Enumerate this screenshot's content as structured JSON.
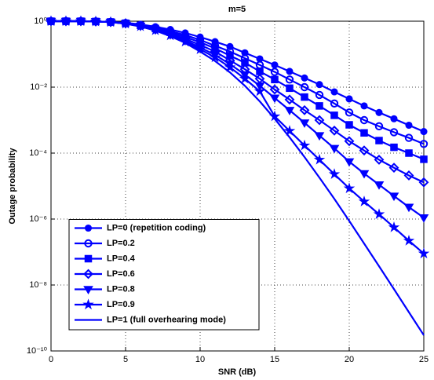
{
  "chart_data": {
    "type": "line",
    "title": "m=5",
    "xlabel": "SNR (dB)",
    "ylabel": "Outage probability",
    "x": [
      0,
      1,
      2,
      3,
      4,
      5,
      6,
      7,
      8,
      9,
      10,
      11,
      12,
      13,
      14,
      15,
      16,
      17,
      18,
      19,
      20,
      21,
      22,
      23,
      24,
      25
    ],
    "xlim": [
      0,
      25
    ],
    "xticks": [
      0,
      5,
      10,
      15,
      20,
      25
    ],
    "ylim": [
      1e-10,
      1
    ],
    "ylog": true,
    "yticks": [
      {
        "value": 1,
        "label": "10⁰"
      },
      {
        "value": 0.01,
        "label": "10⁻²"
      },
      {
        "value": 0.0001,
        "label": "10⁻⁴"
      },
      {
        "value": 1e-06,
        "label": "10⁻⁶"
      },
      {
        "value": 1e-08,
        "label": "10⁻⁸"
      },
      {
        "value": 1e-10,
        "label": "10⁻¹⁰"
      }
    ],
    "grid": true,
    "legend": "lower left",
    "series": [
      {
        "name": "LP=0 (repetition coding)",
        "color": "#0000ff",
        "marker": "circle-filled",
        "values": [
          1,
          1,
          1,
          0.98,
          0.95,
          0.9,
          0.8,
          0.68,
          0.56,
          0.44,
          0.33,
          0.24,
          0.17,
          0.11,
          0.072,
          0.047,
          0.03,
          0.019,
          0.012,
          0.0072,
          0.0044,
          0.0027,
          0.0017,
          0.0011,
          0.0007,
          0.00045
        ]
      },
      {
        "name": "LP=0.2",
        "color": "#0000ff",
        "marker": "circle",
        "values": [
          1,
          1,
          1,
          0.98,
          0.95,
          0.88,
          0.77,
          0.63,
          0.5,
          0.38,
          0.27,
          0.18,
          0.12,
          0.075,
          0.047,
          0.029,
          0.017,
          0.01,
          0.0058,
          0.0032,
          0.0017,
          0.001,
          0.00065,
          0.00043,
          0.00029,
          0.00019
        ]
      },
      {
        "name": "LP=0.4",
        "color": "#0000ff",
        "marker": "square",
        "values": [
          1,
          1,
          1,
          0.98,
          0.95,
          0.87,
          0.75,
          0.6,
          0.46,
          0.33,
          0.23,
          0.15,
          0.09,
          0.055,
          0.03,
          0.017,
          0.0093,
          0.005,
          0.0027,
          0.0014,
          0.00072,
          0.00041,
          0.00024,
          0.00015,
          0.0001,
          6.5e-05
        ]
      },
      {
        "name": "LP=0.6",
        "color": "#0000ff",
        "marker": "diamond",
        "values": [
          1,
          1,
          1,
          0.98,
          0.94,
          0.86,
          0.73,
          0.57,
          0.42,
          0.29,
          0.19,
          0.12,
          0.065,
          0.035,
          0.018,
          0.0085,
          0.0042,
          0.002,
          0.001,
          0.00048,
          0.00023,
          0.00012,
          6.3e-05,
          3.6e-05,
          2.1e-05,
          1.3e-05
        ]
      },
      {
        "name": "LP=0.8",
        "color": "#0000ff",
        "marker": "triangle-down",
        "values": [
          1,
          1,
          1,
          0.98,
          0.94,
          0.85,
          0.71,
          0.55,
          0.39,
          0.26,
          0.16,
          0.095,
          0.05,
          0.024,
          0.011,
          0.0047,
          0.002,
          0.00083,
          0.00034,
          0.00014,
          5.5e-05,
          2.4e-05,
          1.1e-05,
          5e-06,
          2.3e-06,
          1.1e-06
        ]
      },
      {
        "name": "LP=0.9",
        "color": "#0000ff",
        "marker": "star",
        "values": [
          1,
          1,
          1,
          0.98,
          0.94,
          0.84,
          0.7,
          0.53,
          0.37,
          0.24,
          0.14,
          0.08,
          0.04,
          0.018,
          0.0075,
          0.0013,
          0.00047,
          0.00017,
          6.3e-05,
          2.3e-05,
          8.5e-06,
          3.4e-06,
          1.4e-06,
          5.6e-07,
          2.2e-07,
          9e-08
        ]
      },
      {
        "name": "LP=1 (full overhearing mode)",
        "color": "#0000ff",
        "marker": "none",
        "values": [
          1,
          1,
          1,
          0.98,
          0.94,
          0.84,
          0.69,
          0.52,
          0.35,
          0.22,
          0.12,
          0.062,
          0.028,
          0.011,
          0.0037,
          0.0011,
          0.0003,
          7.6e-05,
          1.8e-05,
          4.1e-06,
          8.8e-07,
          1.8e-07,
          3.7e-08,
          7.5e-09,
          1.5e-09,
          3e-10
        ]
      }
    ]
  }
}
